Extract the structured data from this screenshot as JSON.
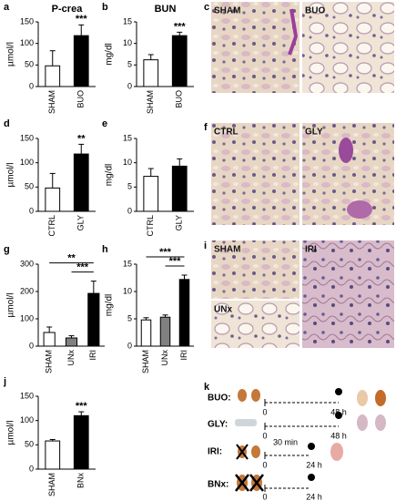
{
  "chart_data": [
    {
      "type": "bar",
      "panel": "a",
      "title": "P-crea",
      "ylabel": "µmol/l",
      "categories": [
        "SHAM",
        "BUO"
      ],
      "values": [
        48,
        118
      ],
      "errors": [
        35,
        25
      ],
      "colors": [
        "#ffffff",
        "#000000"
      ],
      "ylim": [
        0,
        150
      ],
      "yticks": [
        0,
        50,
        100,
        150
      ],
      "annotations": [
        {
          "text": "***",
          "span": [
            "BUO"
          ]
        }
      ]
    },
    {
      "type": "bar",
      "panel": "b",
      "title": "BUN",
      "ylabel": "mg/dl",
      "categories": [
        "SHAM",
        "BUO"
      ],
      "values": [
        6.2,
        11.8
      ],
      "errors": [
        1.2,
        0.8
      ],
      "colors": [
        "#ffffff",
        "#000000"
      ],
      "ylim": [
        0,
        15
      ],
      "yticks": [
        0,
        5,
        10,
        15
      ],
      "annotations": [
        {
          "text": "***",
          "span": [
            "BUO"
          ]
        }
      ]
    },
    {
      "type": "bar",
      "panel": "d",
      "ylabel": "µmol/l",
      "categories": [
        "CTRL",
        "GLY"
      ],
      "values": [
        48,
        118
      ],
      "errors": [
        30,
        20
      ],
      "colors": [
        "#ffffff",
        "#000000"
      ],
      "ylim": [
        0,
        150
      ],
      "yticks": [
        0,
        50,
        100,
        150
      ],
      "annotations": [
        {
          "text": "**",
          "span": [
            "GLY"
          ]
        }
      ]
    },
    {
      "type": "bar",
      "panel": "e",
      "ylabel": "mg/dl",
      "categories": [
        "CTRL",
        "GLY"
      ],
      "values": [
        7.2,
        9.3
      ],
      "errors": [
        1.6,
        1.5
      ],
      "colors": [
        "#ffffff",
        "#000000"
      ],
      "ylim": [
        0,
        15
      ],
      "yticks": [
        0,
        5,
        10,
        15
      ],
      "annotations": []
    },
    {
      "type": "bar",
      "panel": "g",
      "ylabel": "µmol/l",
      "categories": [
        "SHAM",
        "UNx",
        "IRI"
      ],
      "values": [
        50,
        30,
        193
      ],
      "errors": [
        20,
        8,
        45
      ],
      "colors": [
        "#ffffff",
        "#808080",
        "#000000"
      ],
      "ylim": [
        0,
        300
      ],
      "yticks": [
        0,
        100,
        200,
        300
      ],
      "annotations": [
        {
          "text": "***",
          "span": [
            "UNx",
            "IRI"
          ]
        },
        {
          "text": "**",
          "span": [
            "SHAM",
            "IRI"
          ]
        }
      ]
    },
    {
      "type": "bar",
      "panel": "h",
      "ylabel": "mg/dl",
      "categories": [
        "SHAM",
        "UNx",
        "IRI"
      ],
      "values": [
        4.8,
        5.3,
        12.2
      ],
      "errors": [
        0.4,
        0.4,
        0.8
      ],
      "colors": [
        "#ffffff",
        "#808080",
        "#000000"
      ],
      "ylim": [
        0,
        15
      ],
      "yticks": [
        0,
        5,
        10,
        15
      ],
      "annotations": [
        {
          "text": "***",
          "span": [
            "UNx",
            "IRI"
          ]
        },
        {
          "text": "***",
          "span": [
            "SHAM",
            "IRI"
          ]
        }
      ]
    },
    {
      "type": "bar",
      "panel": "j",
      "ylabel": "µmol/l",
      "categories": [
        "SHAM",
        "BNx"
      ],
      "values": [
        58,
        110
      ],
      "errors": [
        3,
        8
      ],
      "colors": [
        "#ffffff",
        "#000000"
      ],
      "ylim": [
        0,
        150
      ],
      "yticks": [
        0,
        50,
        100,
        150
      ],
      "annotations": [
        {
          "text": "***",
          "span": [
            "BNx"
          ]
        }
      ]
    }
  ],
  "images": [
    {
      "panel": "c",
      "labels": [
        "SHAM",
        "BUO"
      ]
    },
    {
      "panel": "f",
      "labels": [
        "CTRL",
        "GLY"
      ]
    },
    {
      "panel": "i",
      "labels": [
        "SHAM",
        "IRI",
        "UNx"
      ]
    }
  ],
  "timeline": {
    "panel": "k",
    "rows": [
      {
        "label": "BUO:",
        "start": "0",
        "end": "48 h"
      },
      {
        "label": "GLY:",
        "start": "0",
        "end": "48 h"
      },
      {
        "label": "IRI:",
        "note": "30 min",
        "start": "0",
        "end": "24 h"
      },
      {
        "label": "BNx:",
        "start": "0",
        "end": "24 h"
      }
    ]
  }
}
